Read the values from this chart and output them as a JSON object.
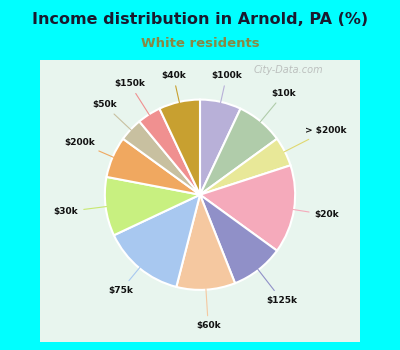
{
  "title": "Income distribution in Arnold, PA (%)",
  "subtitle": "White residents",
  "title_color": "#1a1a2e",
  "subtitle_color": "#888844",
  "bg_color": "#00ffff",
  "chart_bg_color": "#e8f5ee",
  "labels": [
    "$100k",
    "$10k",
    "> $200k",
    "$20k",
    "$125k",
    "$60k",
    "$75k",
    "$30k",
    "$200k",
    "$50k",
    "$150k",
    "$40k"
  ],
  "values": [
    7,
    8,
    5,
    15,
    9,
    10,
    14,
    10,
    7,
    4,
    4,
    7
  ],
  "colors": [
    "#b8b0d8",
    "#b0ccaa",
    "#e8e898",
    "#f5aabb",
    "#9090c8",
    "#f5c8a0",
    "#a8c8f0",
    "#c8f080",
    "#f0a860",
    "#c8c0a0",
    "#f09090",
    "#c8a030"
  ],
  "startangle": 90,
  "label_line_colors": [
    "#b8b0d8",
    "#b0ccaa",
    "#e0d870",
    "#f5aabb",
    "#9090c8",
    "#f5c8a0",
    "#a8c8f0",
    "#c8e870",
    "#f0a860",
    "#c8c0a0",
    "#f09090",
    "#c8a030"
  ]
}
